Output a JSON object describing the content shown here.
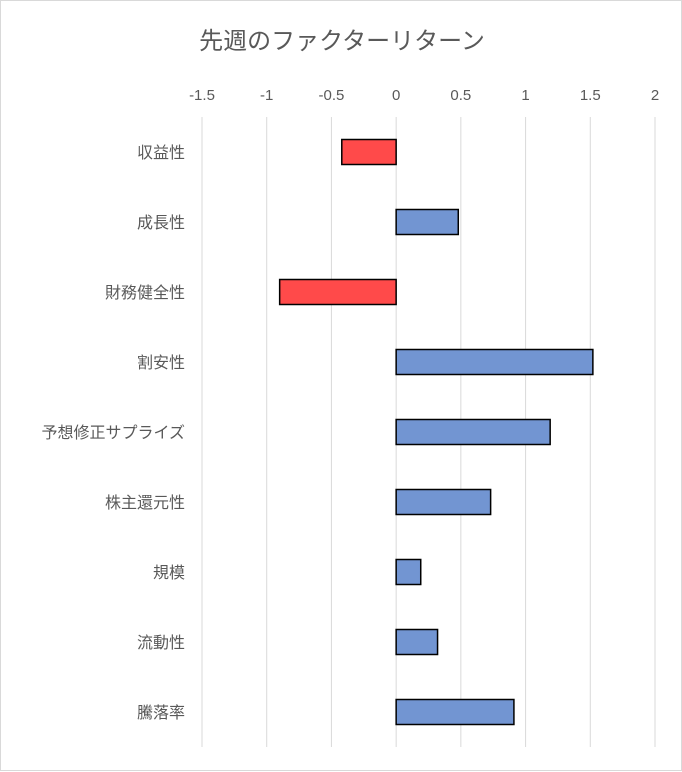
{
  "chart_data": {
    "type": "bar",
    "orientation": "horizontal",
    "title": "先週のファクターリターン",
    "categories": [
      "収益性",
      "成長性",
      "財務健全性",
      "割安性",
      "予想修正サプライズ",
      "株主還元性",
      "規模",
      "流動性",
      "騰落率"
    ],
    "values": [
      -0.42,
      0.48,
      -0.9,
      1.52,
      1.19,
      0.73,
      0.19,
      0.32,
      0.91
    ],
    "xlim": [
      -1.5,
      2
    ],
    "x_ticks": [
      -1.5,
      -1,
      -0.5,
      0,
      0.5,
      1,
      1.5,
      2
    ],
    "x_tick_labels": [
      "-1.5",
      "-1",
      "-0.5",
      "0",
      "0.5",
      "1",
      "1.5",
      "2"
    ],
    "x_axis_position": "top",
    "grid": true,
    "legend": false,
    "colors": {
      "positive": "#7295d2",
      "negative": "#ff4a4a",
      "outline": "#000000",
      "gridline": "#d9d9d9",
      "text": "#595959"
    }
  }
}
